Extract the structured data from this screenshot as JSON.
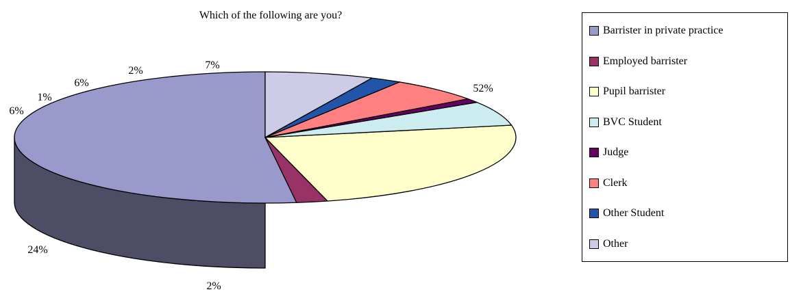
{
  "chart_data": {
    "type": "pie",
    "title": "Which of the following are you?",
    "style": "3d",
    "legend_position": "right",
    "slices": [
      {
        "label": "Barrister in private practice",
        "value": 52,
        "value_label": "52%",
        "color": "#9999CC"
      },
      {
        "label": "Employed barrister",
        "value": 2,
        "value_label": "2%",
        "color": "#993366"
      },
      {
        "label": "Pupil barrister",
        "value": 24,
        "value_label": "24%",
        "color": "#FFFFCC"
      },
      {
        "label": "BVC Student",
        "value": 6,
        "value_label": "6%",
        "color": "#CCECF0"
      },
      {
        "label": "Judge",
        "value": 1,
        "value_label": "1%",
        "color": "#660066"
      },
      {
        "label": "Clerk",
        "value": 6,
        "value_label": "6%",
        "color": "#FF8080"
      },
      {
        "label": "Other Student",
        "value": 2,
        "value_label": "2%",
        "color": "#2255AA"
      },
      {
        "label": "Other",
        "value": 7,
        "value_label": "7%",
        "color": "#CCCCE6"
      }
    ]
  }
}
